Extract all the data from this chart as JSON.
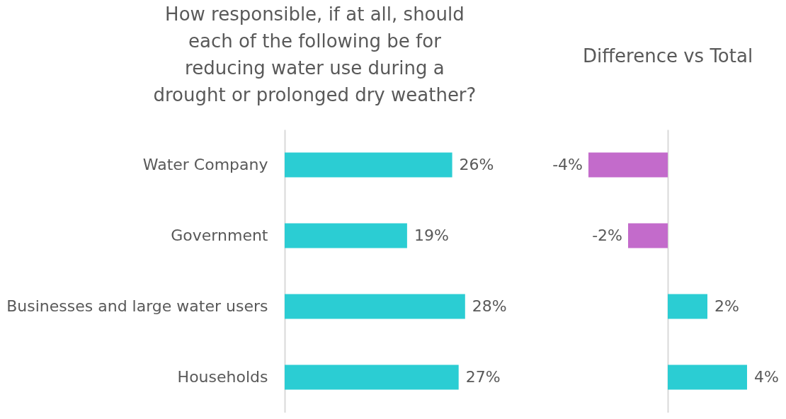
{
  "chart_data": [
    {
      "type": "bar",
      "orientation": "horizontal",
      "title": "How responsible, if at all, should\neach of the following be for\nreducing water use during a\ndrought or prolonged dry weather?",
      "categories": [
        "Water Company",
        "Government",
        "Businesses and large\nwater users",
        "Households"
      ],
      "values": [
        26,
        19,
        28,
        27
      ],
      "color": "#2bcdd3",
      "value_labels": [
        "26%",
        "19%",
        "28%",
        "27%"
      ]
    },
    {
      "type": "bar",
      "orientation": "horizontal",
      "title": "Difference vs Total",
      "categories": [
        null,
        null,
        null,
        null
      ],
      "values": [
        -4,
        -2,
        2,
        4
      ],
      "colors": [
        "#c36bcb",
        "#c36bcb",
        "#2bcdd3",
        "#2bcdd3"
      ],
      "value_labels": [
        "-4%",
        "-2%",
        "2%",
        "4%"
      ]
    }
  ]
}
